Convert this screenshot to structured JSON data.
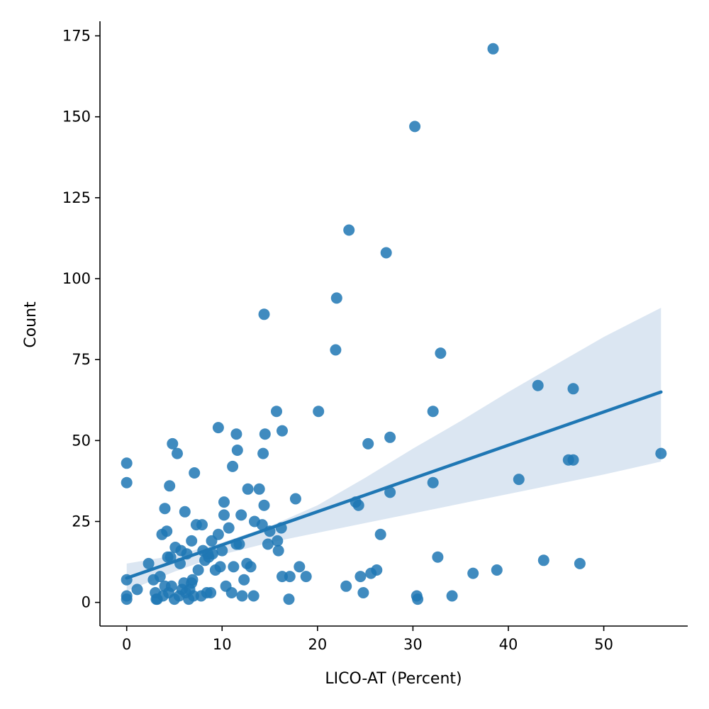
{
  "chart_data": {
    "type": "scatter",
    "title": "",
    "xlabel": "LICO-AT (Percent)",
    "ylabel": "Count",
    "xlim": [
      -2.8,
      58.8
    ],
    "ylim": [
      -7.3,
      179.5
    ],
    "xticks": [
      0,
      10,
      20,
      30,
      40,
      50
    ],
    "yticks": [
      0,
      25,
      50,
      75,
      100,
      125,
      150,
      175
    ],
    "grid": false,
    "legend": "none",
    "colors": {
      "points": "#1f77b4",
      "line": "#1f77b4",
      "band": "#dbe6f2"
    },
    "regression": {
      "x": [
        0,
        56
      ],
      "y": [
        7.5,
        65
      ],
      "ci_x": [
        0,
        5,
        10,
        15,
        20,
        25,
        30,
        35,
        40,
        45,
        50,
        56
      ],
      "ci_lower": [
        3.5,
        9.5,
        14.8,
        18.5,
        21.5,
        24.5,
        27.5,
        30.5,
        33.5,
        36.5,
        39.5,
        43.5
      ],
      "ci_upper": [
        12,
        14.5,
        18.5,
        23.5,
        30,
        38.5,
        47.5,
        56,
        65,
        73.5,
        82,
        91
      ]
    },
    "series": [
      {
        "x": [
          38.4,
          30.2,
          23.3,
          27.2,
          22.0,
          14.4,
          21.9,
          32.9,
          43.1,
          46.8,
          56.0,
          46.3,
          46.8,
          41.1,
          32.1,
          27.6,
          32.1,
          27.6,
          24.0,
          24.3,
          26.6,
          25.3,
          20.1,
          15.7,
          16.3,
          9.6,
          11.5,
          14.5,
          14.3,
          11.6,
          4.8,
          5.3,
          0,
          0,
          7.1,
          4.5,
          11.1,
          17.7,
          10.2,
          12.7,
          13.9,
          14.4,
          4.0,
          6.1,
          10.2,
          12.0,
          13.4,
          14.2,
          15.0,
          16.2,
          7.3,
          7.9,
          4.2,
          3.7,
          9.6,
          8.9,
          10.7,
          15.8,
          5.1,
          6.3,
          5.7,
          8.0,
          8.5,
          4.3,
          4.6,
          10.0,
          12.6,
          13.0,
          2.3,
          18.1,
          6.8,
          11.5,
          11.8,
          15.9,
          14.8,
          18.8,
          23.0,
          24.5,
          25.6,
          26.2,
          24.8,
          30.4,
          30.5,
          34.1,
          36.3,
          38.8,
          43.7,
          47.5,
          32.6,
          17.1,
          16.3,
          17.0,
          13.3,
          12.1,
          11.0,
          10.4,
          0,
          0,
          0,
          1.1,
          2.8,
          3.0,
          3.5,
          4.0,
          5.0,
          5.5,
          6.2,
          6.8,
          7.5,
          8.2,
          8.6,
          9.0,
          9.8,
          3.2,
          3.8,
          4.4,
          5.8,
          6.5,
          7.0,
          8.8,
          9.3,
          11.2,
          12.3,
          6.0,
          6.6,
          7.8,
          3.1,
          4.7,
          5.6,
          6.9,
          8.4
        ],
        "y": [
          171,
          147,
          115,
          108,
          94,
          89,
          78,
          77,
          67,
          66,
          46,
          44,
          44,
          38,
          59,
          51,
          37,
          34,
          31,
          30,
          21,
          49,
          59,
          59,
          53,
          54,
          52,
          52,
          46,
          47,
          49,
          46,
          43,
          37,
          40,
          36,
          42,
          32,
          31,
          35,
          35,
          30,
          29,
          28,
          27,
          27,
          25,
          24,
          22,
          23,
          24,
          24,
          22,
          21,
          21,
          19,
          23,
          19,
          17,
          15,
          16,
          16,
          15,
          14,
          14,
          16,
          12,
          11,
          12,
          11,
          19,
          18,
          18,
          16,
          18,
          8,
          5,
          8,
          9,
          10,
          3,
          2,
          1,
          2,
          9,
          10,
          13,
          12,
          14,
          8,
          8,
          1,
          2,
          2,
          3,
          5,
          7,
          2,
          1,
          4,
          7,
          3,
          8,
          5,
          1,
          2,
          3,
          6,
          10,
          13,
          14,
          15,
          11,
          1,
          2,
          3,
          4,
          1,
          2,
          3,
          10,
          11,
          7,
          6,
          4,
          2,
          1,
          5,
          12,
          7,
          3
        ]
      }
    ]
  }
}
